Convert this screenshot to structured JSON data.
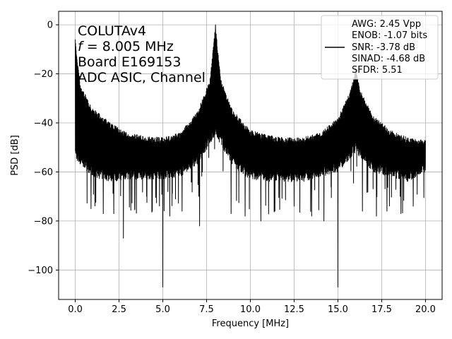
{
  "chart_data": {
    "type": "line",
    "xlabel": "Frequency [MHz]",
    "ylabel": "PSD [dB]",
    "xlim": [
      -0.95,
      20.95
    ],
    "ylim": [
      -112,
      5.5
    ],
    "x_ticks": [
      0.0,
      2.5,
      5.0,
      7.5,
      10.0,
      12.5,
      15.0,
      17.5,
      20.0
    ],
    "x_tick_labels": [
      "0.0",
      "2.5",
      "5.0",
      "7.5",
      "10.0",
      "12.5",
      "15.0",
      "17.5",
      "20.0"
    ],
    "y_ticks": [
      0,
      -20,
      -40,
      -60,
      -80,
      -100
    ],
    "y_tick_labels": [
      "0",
      "−20",
      "−40",
      "−60",
      "−80",
      "−100"
    ],
    "grid": true,
    "line_color": "#000000",
    "annotation": {
      "line1": "COLUTAv4",
      "line2_var": "f",
      "line2_rest": " = 8.005 MHz",
      "line3": "Board E169153",
      "line4": "ADC ASIC, Channel"
    },
    "legend": {
      "placement": "upper-right",
      "lines": [
        "AWG: 2.45 Vpp",
        "ENOB: -1.07 bits",
        "SNR: -3.78 dB",
        "SINAD: -4.68 dB",
        "SFDR: 5.51"
      ]
    },
    "series": [
      {
        "fundamental": {
          "x": 8.005,
          "y": 0
        },
        "harmonic": {
          "x": 16.01,
          "y": -18
        },
        "dc": {
          "x": 0.0,
          "y": -6
        },
        "envelope_top": [
          [
            0.0,
            -6
          ],
          [
            0.3,
            -25
          ],
          [
            1,
            -34
          ],
          [
            2,
            -40
          ],
          [
            3,
            -44
          ],
          [
            4,
            -45.5
          ],
          [
            5,
            -46
          ],
          [
            6,
            -44
          ],
          [
            7,
            -35
          ],
          [
            7.7,
            -22
          ],
          [
            8.005,
            0
          ],
          [
            8.3,
            -22
          ],
          [
            9,
            -35
          ],
          [
            10,
            -43
          ],
          [
            11,
            -45
          ],
          [
            12,
            -46
          ],
          [
            13,
            -46
          ],
          [
            14,
            -44
          ],
          [
            15,
            -38
          ],
          [
            15.7,
            -27
          ],
          [
            16.01,
            -18
          ],
          [
            16.3,
            -27
          ],
          [
            17,
            -37
          ],
          [
            18,
            -43
          ],
          [
            19,
            -46
          ],
          [
            20,
            -47
          ]
        ],
        "envelope_bottom": [
          [
            0.0,
            -55
          ],
          [
            1,
            -62
          ],
          [
            2,
            -64
          ],
          [
            3,
            -63
          ],
          [
            4,
            -63
          ],
          [
            5,
            -63
          ],
          [
            6,
            -62
          ],
          [
            7,
            -57
          ],
          [
            8.005,
            -45
          ],
          [
            9,
            -58
          ],
          [
            10,
            -63
          ],
          [
            11,
            -64
          ],
          [
            12,
            -64
          ],
          [
            13,
            -64
          ],
          [
            14,
            -62
          ],
          [
            15,
            -60
          ],
          [
            16.01,
            -52
          ],
          [
            17,
            -60
          ],
          [
            18,
            -62
          ],
          [
            19,
            -64
          ],
          [
            20,
            -60
          ]
        ],
        "deep_dips": [
          [
            0.9,
            -75
          ],
          [
            1.6,
            -77
          ],
          [
            2.2,
            -77
          ],
          [
            2.75,
            -87
          ],
          [
            3.4,
            -75
          ],
          [
            4.4,
            -76
          ],
          [
            5.0,
            -107
          ],
          [
            5.4,
            -78
          ],
          [
            6.1,
            -76
          ],
          [
            7.1,
            -82
          ],
          [
            8.9,
            -77
          ],
          [
            9.7,
            -78
          ],
          [
            10.6,
            -80
          ],
          [
            11.4,
            -76
          ],
          [
            12.5,
            -74
          ],
          [
            13.5,
            -78
          ],
          [
            14.2,
            -80
          ],
          [
            15.0,
            -107
          ],
          [
            16.4,
            -76
          ],
          [
            17.2,
            -78
          ],
          [
            17.8,
            -76
          ],
          [
            18.6,
            -77
          ],
          [
            19.3,
            -74
          ]
        ]
      }
    ]
  }
}
